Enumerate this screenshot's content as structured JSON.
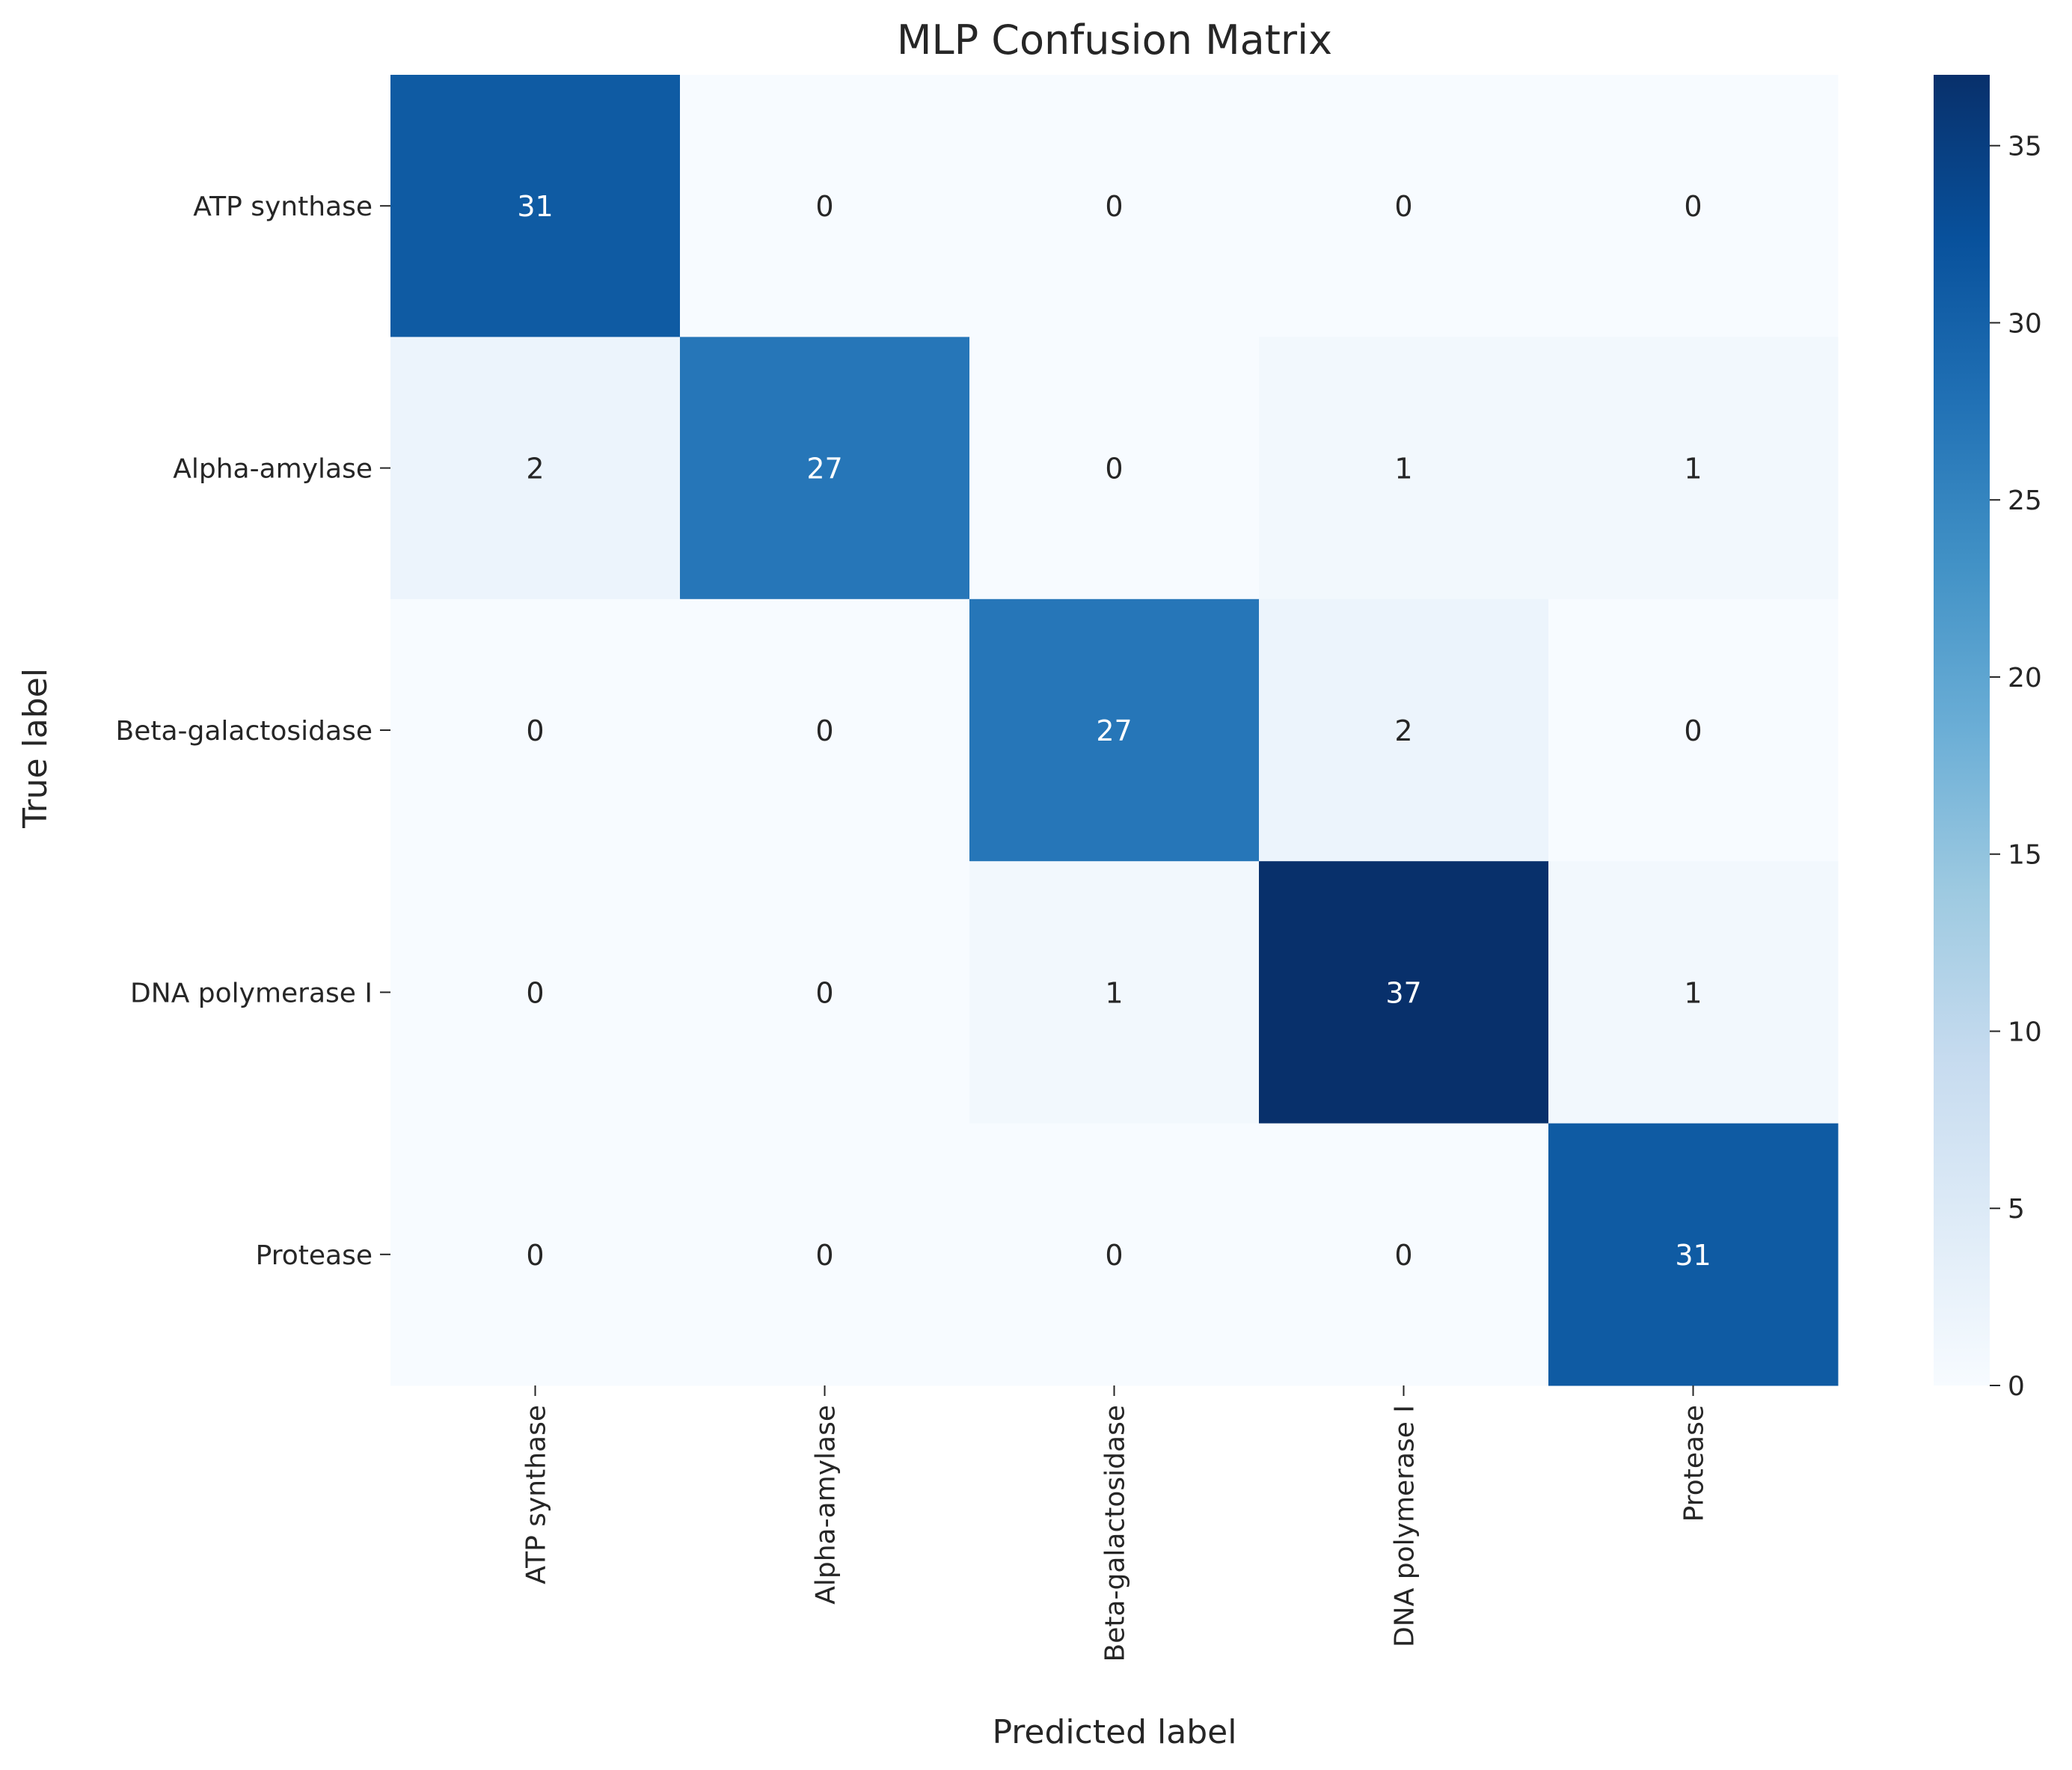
{
  "chart_data": {
    "type": "heatmap",
    "title": "MLP Confusion Matrix",
    "xlabel": "Predicted label",
    "ylabel": "True label",
    "x_categories": [
      "ATP synthase",
      "Alpha-amylase",
      "Beta-galactosidase",
      "DNA polymerase I",
      "Protease"
    ],
    "y_categories": [
      "ATP synthase",
      "Alpha-amylase",
      "Beta-galactosidase",
      "DNA polymerase I",
      "Protease"
    ],
    "values": [
      [
        31,
        0,
        0,
        0,
        0
      ],
      [
        2,
        27,
        0,
        1,
        1
      ],
      [
        0,
        0,
        27,
        2,
        0
      ],
      [
        0,
        0,
        1,
        37,
        1
      ],
      [
        0,
        0,
        0,
        0,
        31
      ]
    ],
    "colormap": "Blues",
    "colorbar": {
      "range": [
        0,
        37
      ],
      "ticks": [
        0,
        5,
        10,
        15,
        20,
        25,
        30,
        35
      ]
    },
    "annotations": true
  }
}
